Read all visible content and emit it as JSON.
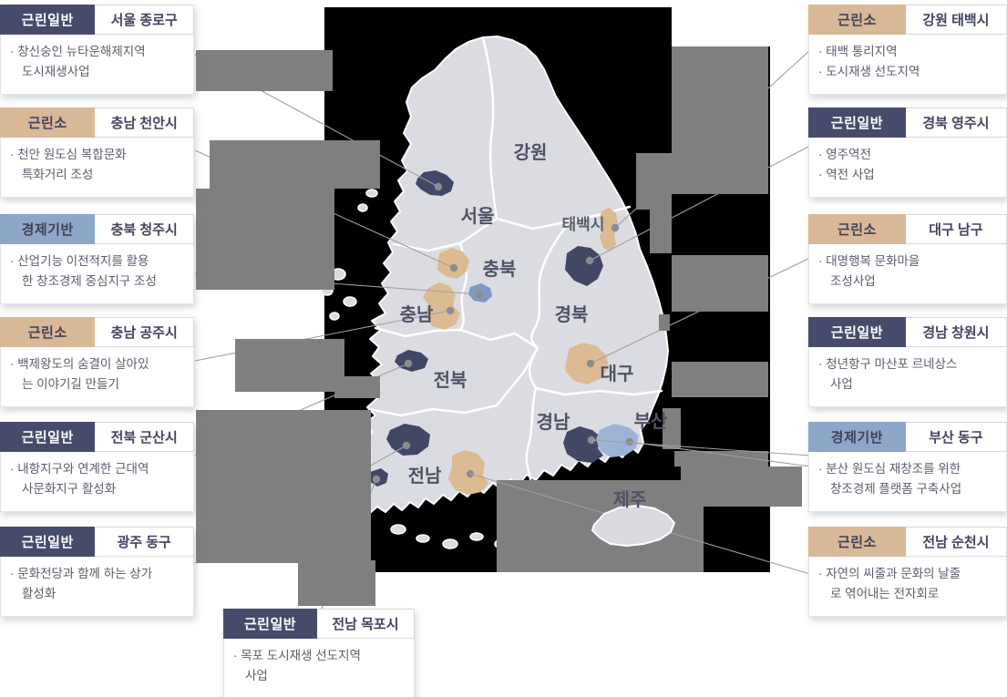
{
  "colors": {
    "category_navy": "#474b6b",
    "category_tan": "#d9b897",
    "category_blue": "#8ea6c8",
    "land": "#dbdce2",
    "patch_navy": "#424765",
    "patch_tan": "#dcba92",
    "patch_blue": "#7e97c4",
    "patch_blue_light": "#9db3d6",
    "gray_block": "#7f7f7f",
    "sea": "#000000"
  },
  "map": {
    "labels": [
      "강원",
      "서울",
      "태백시",
      "충북",
      "충남",
      "경북",
      "전북",
      "대구",
      "경남",
      "전남",
      "부산",
      "제주"
    ]
  },
  "callouts": {
    "left": [
      {
        "category": "근린일반",
        "type": "navy",
        "location": "서울 종로구",
        "lines": [
          "· 창신숭인 뉴타운해제지역",
          "도시재생사업"
        ]
      },
      {
        "category": "근린소",
        "type": "tan",
        "location": "충남 천안시",
        "lines": [
          "· 천안 원도심 복합문화",
          "특화거리 조성"
        ]
      },
      {
        "category": "경제기반",
        "type": "blue",
        "location": "충북 청주시",
        "lines": [
          "· 산업기능 이전적지를 활용",
          "한 창조경제 중심지구 조성"
        ]
      },
      {
        "category": "근린소",
        "type": "tan",
        "location": "충남 공주시",
        "lines": [
          "· 백제왕도의 숨결이 살아있",
          "는 이야기길 만들기"
        ]
      },
      {
        "category": "근린일반",
        "type": "navy",
        "location": "전북 군산시",
        "lines": [
          "· 내항지구와 연계한 근대역",
          "사문화지구 활성화"
        ]
      },
      {
        "category": "근린일반",
        "type": "navy",
        "location": "광주 동구",
        "lines": [
          "· 문화전당과 함께 하는 상가",
          "활성화"
        ]
      }
    ],
    "right": [
      {
        "category": "근린소",
        "type": "tan",
        "location": "강원 태백시",
        "lines": [
          "· 태백 통리지역",
          "· 도시재생 선도지역"
        ]
      },
      {
        "category": "근린일반",
        "type": "navy",
        "location": "경북 영주시",
        "lines": [
          "· 영주역전",
          "· 역전 사업"
        ]
      },
      {
        "category": "근린소",
        "type": "tan",
        "location": "대구 남구",
        "lines": [
          "· 대명행복 문화마을",
          "조성사업"
        ]
      },
      {
        "category": "근린일반",
        "type": "navy",
        "location": "경남 창원시",
        "lines": [
          "· 청년항구 마산포 르네상스",
          "사업"
        ]
      },
      {
        "category": "경제기반",
        "type": "blue",
        "location": "부산 동구",
        "lines": [
          "· 분산 원도심 재창조를 위한",
          "창조경제 플랫폼 구축사업"
        ]
      },
      {
        "category": "근린소",
        "type": "tan",
        "location": "전남 순천시",
        "lines": [
          "· 자연의 씨줄과 문화의 날줄",
          "로 엮어내는 전자회로"
        ]
      }
    ],
    "bottom": [
      {
        "category": "근린일반",
        "type": "navy",
        "location": "전남 목포시",
        "lines": [
          "· 목포 도시재생 선도지역",
          "사업"
        ]
      }
    ]
  }
}
